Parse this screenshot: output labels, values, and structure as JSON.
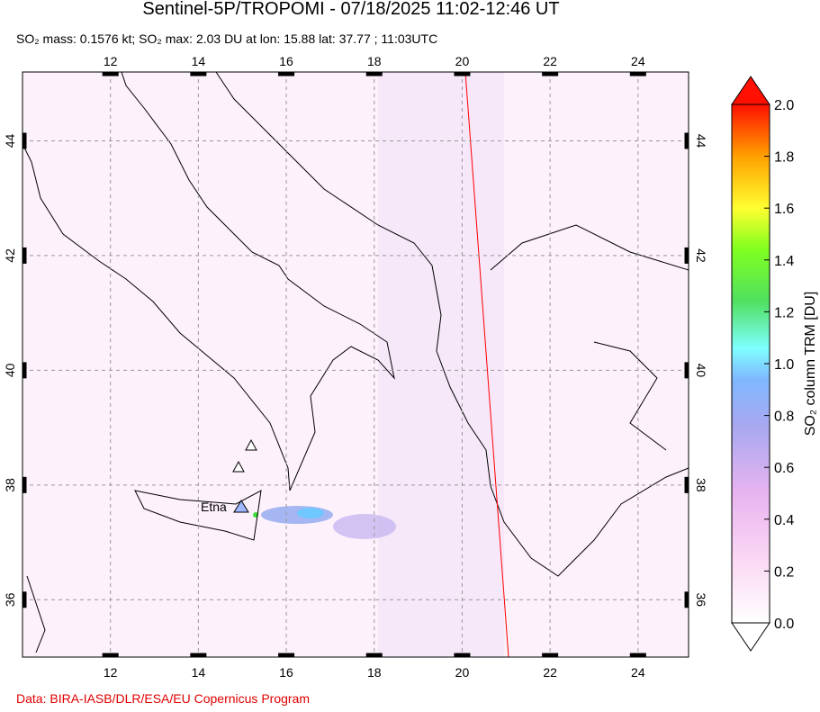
{
  "chart_data": {
    "type": "map",
    "title": "Sentinel-5P/TROPOMI - 07/18/2025 11:02-12:46 UT",
    "subtitle": "SO₂ mass: 0.1576 kt; SO₂ max: 2.03 DU at lon: 15.88 lat: 37.77 ; 11:03UTC",
    "xlim": [
      10,
      25.15
    ],
    "ylim": [
      35,
      45.2
    ],
    "xticks": [
      12,
      14,
      16,
      18,
      20,
      22,
      24
    ],
    "yticks": [
      36,
      38,
      40,
      42,
      44
    ],
    "grid": true,
    "annotation": "Etna",
    "colorbar": {
      "label": "SO₂ column TRM [DU]",
      "lim": [
        0,
        2
      ],
      "ticks": [
        {
          "value": 0,
          "label": "0.0"
        },
        0.2,
        0.4,
        0.6,
        0.8,
        {
          "value": 1,
          "label": "1.0"
        },
        1.2,
        1.4,
        1.6,
        1.8,
        {
          "value": 2,
          "label": "2.0"
        }
      ]
    },
    "credit": "Data: BIRA-IASB/DLR/ESA/EU Copernicus Program"
  }
}
